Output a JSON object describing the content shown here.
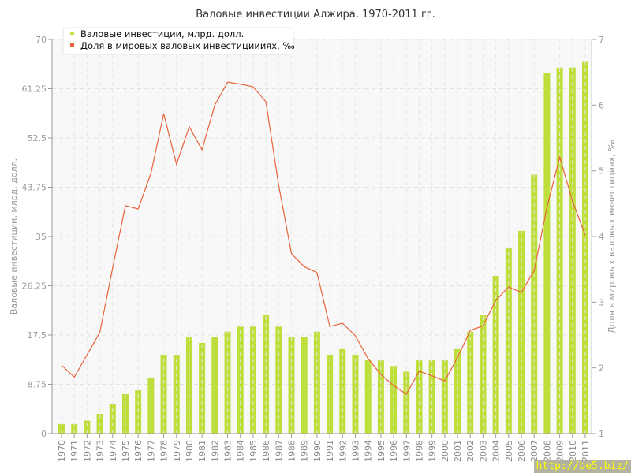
{
  "chart_data": {
    "type": "bar+line",
    "title": "Валовые инвестиции Алжира, 1970-2011 гг.",
    "ylabel": "Валовые инвестиции, млрд. долл.",
    "y2label": "Доля в мировых валовых инвестициях, ‰",
    "ylim": [
      0,
      70
    ],
    "y2lim": [
      1,
      7
    ],
    "yticks": [
      "0",
      "8.75",
      "17.5",
      "26.25",
      "35",
      "43.75",
      "52.5",
      "61.25",
      "70"
    ],
    "y2ticks": [
      "1",
      "2",
      "3",
      "4",
      "5",
      "6",
      "7"
    ],
    "grid": true,
    "legend_position": "top-left",
    "categories": [
      "1970",
      "1971",
      "1972",
      "1973",
      "1974",
      "1975",
      "1976",
      "1977",
      "1978",
      "1979",
      "1980",
      "1981",
      "1982",
      "1983",
      "1984",
      "1985",
      "1986",
      "1987",
      "1988",
      "1989",
      "1990",
      "1991",
      "1992",
      "1993",
      "1994",
      "1995",
      "1996",
      "1997",
      "1998",
      "1999",
      "2000",
      "2001",
      "2002",
      "2003",
      "2004",
      "2005",
      "2006",
      "2007",
      "2008",
      "2009",
      "2010",
      "2011"
    ],
    "series": [
      {
        "name": "Валовые инвестиции, млрд. долл.",
        "type": "bar",
        "axis": "left",
        "color": "#bede3a",
        "values": [
          1.7,
          1.7,
          2.3,
          3.5,
          5.3,
          7,
          7.7,
          9.8,
          14,
          14,
          17.1,
          16.1,
          17.1,
          18.1,
          19,
          19,
          21,
          19,
          17.1,
          17.1,
          18.1,
          14,
          15,
          14,
          13,
          13,
          12,
          11,
          13,
          13,
          13,
          15,
          18.1,
          21,
          28,
          33,
          36,
          46,
          64,
          65,
          65,
          66
        ]
      },
      {
        "name": "Доля в мировых валовых инвестициииях, ‰",
        "type": "line",
        "axis": "right",
        "color": "#e8643a",
        "values": [
          2.04,
          1.86,
          2.2,
          2.54,
          3.52,
          4.47,
          4.42,
          4.96,
          5.87,
          5.1,
          5.67,
          5.32,
          6.0,
          6.35,
          6.32,
          6.28,
          6.05,
          4.78,
          3.74,
          3.54,
          3.45,
          2.63,
          2.68,
          2.49,
          2.14,
          1.9,
          1.73,
          1.6,
          1.95,
          1.88,
          1.8,
          2.16,
          2.57,
          2.64,
          3.03,
          3.23,
          3.15,
          3.48,
          4.44,
          5.21,
          4.54,
          4.02
        ]
      }
    ]
  },
  "watermark": "http://be5.biz/"
}
